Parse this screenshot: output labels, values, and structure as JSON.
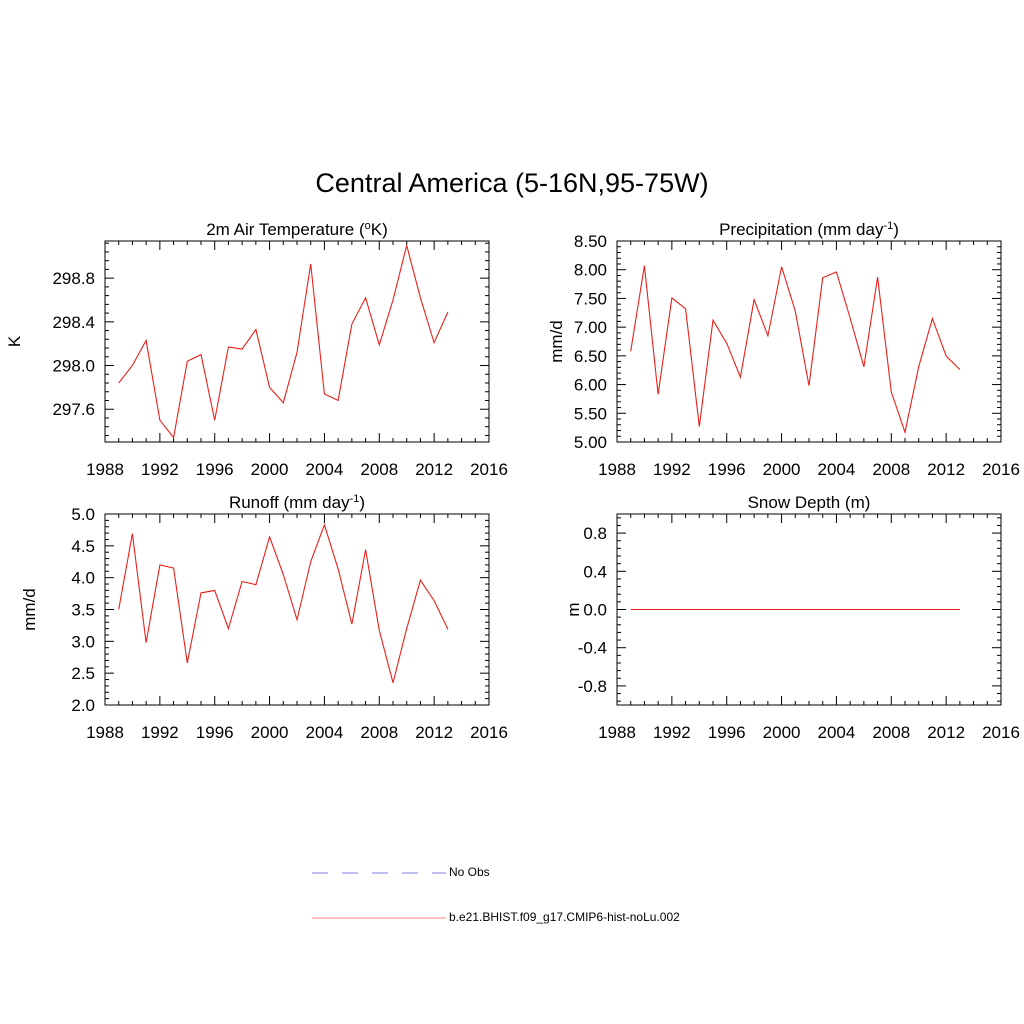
{
  "title": "Central America (5-16N,95-75W)",
  "legend": {
    "items": [
      {
        "label": "No Obs",
        "style": "dashed",
        "color": "#9999ee"
      },
      {
        "label": "b.e21.BHIST.f09_g17.CMIP6-hist-noLu.002",
        "style": "solid",
        "color": "#ff9999"
      }
    ]
  },
  "line_color": "#e8201a",
  "chart_data": [
    {
      "type": "line",
      "title": "2m Air Temperature (",
      "title_sup": "o",
      "title_after": "K)",
      "ylabel": "K",
      "xlim": [
        1988,
        2016
      ],
      "ylim": [
        297.3,
        299.14
      ],
      "xticks": [
        1988,
        1992,
        1996,
        2000,
        2004,
        2008,
        2012,
        2016
      ],
      "yticks": [
        297.6,
        298.0,
        298.4,
        298.8
      ],
      "ytick_labels": [
        "297.6",
        "298.0",
        "298.4",
        "298.8"
      ],
      "x": [
        1989,
        1990,
        1991,
        1992,
        1993,
        1994,
        1995,
        1996,
        1997,
        1998,
        1999,
        2000,
        2001,
        2002,
        2003,
        2004,
        2005,
        2006,
        2007,
        2008,
        2009,
        2010,
        2011,
        2012,
        2013
      ],
      "series": [
        {
          "values": [
            297.84,
            298.0,
            298.23,
            297.5,
            297.34,
            298.04,
            298.1,
            297.5,
            298.17,
            298.15,
            298.33,
            297.8,
            297.66,
            298.12,
            298.93,
            297.74,
            297.68,
            298.38,
            298.62,
            298.19,
            298.6,
            299.1,
            298.62,
            298.21,
            298.49
          ]
        }
      ]
    },
    {
      "type": "line",
      "title": "Precipitation (mm day",
      "title_sup": "-1",
      "title_after": ")",
      "ylabel": "mm/d",
      "xlim": [
        1988,
        2016
      ],
      "ylim": [
        5.0,
        8.5
      ],
      "xticks": [
        1988,
        1992,
        1996,
        2000,
        2004,
        2008,
        2012,
        2016
      ],
      "yticks": [
        5.0,
        5.5,
        6.0,
        6.5,
        7.0,
        7.5,
        8.0,
        8.5
      ],
      "ytick_labels": [
        "5.00",
        "5.50",
        "6.00",
        "6.50",
        "7.00",
        "7.50",
        "8.00",
        "8.50"
      ],
      "x": [
        1989,
        1990,
        1991,
        1992,
        1993,
        1994,
        1995,
        1996,
        1997,
        1998,
        1999,
        2000,
        2001,
        2002,
        2003,
        2004,
        2005,
        2006,
        2007,
        2008,
        2009,
        2010,
        2011,
        2012,
        2013
      ],
      "series": [
        {
          "values": [
            6.58,
            8.07,
            5.83,
            7.51,
            7.32,
            5.27,
            7.12,
            6.72,
            6.13,
            7.48,
            6.85,
            8.05,
            7.28,
            5.98,
            7.86,
            7.96,
            7.16,
            6.31,
            7.87,
            5.87,
            5.17,
            6.31,
            7.15,
            6.5,
            6.26
          ]
        }
      ]
    },
    {
      "type": "line",
      "title": "Runoff (mm day",
      "title_sup": "-1",
      "title_after": ")",
      "ylabel": "mm/d",
      "xlim": [
        1988,
        2016
      ],
      "ylim": [
        2.0,
        5.0
      ],
      "xticks": [
        1988,
        1992,
        1996,
        2000,
        2004,
        2008,
        2012,
        2016
      ],
      "yticks": [
        2.0,
        2.5,
        3.0,
        3.5,
        4.0,
        4.5,
        5.0
      ],
      "ytick_labels": [
        "2.0",
        "2.5",
        "3.0",
        "3.5",
        "4.0",
        "4.5",
        "5.0"
      ],
      "x": [
        1989,
        1990,
        1991,
        1992,
        1993,
        1994,
        1995,
        1996,
        1997,
        1998,
        1999,
        2000,
        2001,
        2002,
        2003,
        2004,
        2005,
        2006,
        2007,
        2008,
        2009,
        2010,
        2011,
        2012,
        2013
      ],
      "series": [
        {
          "values": [
            3.5,
            4.69,
            2.98,
            4.2,
            4.15,
            2.66,
            3.76,
            3.8,
            3.2,
            3.94,
            3.89,
            4.64,
            4.05,
            3.34,
            4.25,
            4.83,
            4.14,
            3.27,
            4.44,
            3.17,
            2.35,
            3.2,
            3.96,
            3.64,
            3.19
          ]
        }
      ]
    },
    {
      "type": "line",
      "title": "Snow Depth (m)",
      "title_sup": "",
      "title_after": "",
      "ylabel": "m",
      "xlim": [
        1988,
        2016
      ],
      "ylim": [
        -1.0,
        1.0
      ],
      "xticks": [
        1988,
        1992,
        1996,
        2000,
        2004,
        2008,
        2012,
        2016
      ],
      "yticks": [
        -0.8,
        -0.4,
        0.0,
        0.4,
        0.8
      ],
      "ytick_labels": [
        "-0.8",
        "-0.4",
        "0.0",
        "0.4",
        "0.8"
      ],
      "x": [
        1989,
        1990,
        1991,
        1992,
        1993,
        1994,
        1995,
        1996,
        1997,
        1998,
        1999,
        2000,
        2001,
        2002,
        2003,
        2004,
        2005,
        2006,
        2007,
        2008,
        2009,
        2010,
        2011,
        2012,
        2013
      ],
      "series": [
        {
          "values": [
            0,
            0,
            0,
            0,
            0,
            0,
            0,
            0,
            0,
            0,
            0,
            0,
            0,
            0,
            0,
            0,
            0,
            0,
            0,
            0,
            0,
            0,
            0,
            0,
            0
          ]
        }
      ]
    }
  ]
}
